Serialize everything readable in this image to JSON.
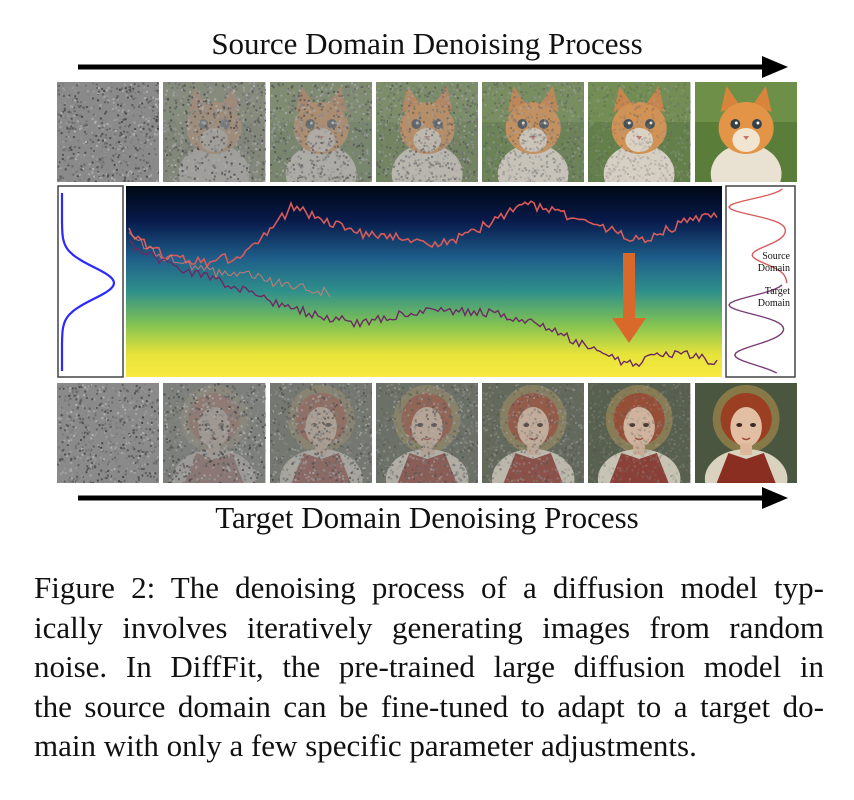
{
  "figure": {
    "title_top": "Source Domain Denoising Process",
    "title_bottom": "Target Domain Denoising Process",
    "legend_source": [
      "Source",
      "Domain"
    ],
    "legend_target": [
      "Target",
      "Domain"
    ],
    "top_row": {
      "subject": "kitten",
      "frames": [
        {
          "noise_level": 1.0
        },
        {
          "noise_level": 0.85
        },
        {
          "noise_level": 0.7
        },
        {
          "noise_level": 0.55
        },
        {
          "noise_level": 0.4
        },
        {
          "noise_level": 0.22
        },
        {
          "noise_level": 0.0
        }
      ]
    },
    "bottom_row": {
      "subject": "painted-portrait",
      "frames": [
        {
          "noise_level": 1.0
        },
        {
          "noise_level": 0.85
        },
        {
          "noise_level": 0.7
        },
        {
          "noise_level": 0.55
        },
        {
          "noise_level": 0.4
        },
        {
          "noise_level": 0.22
        },
        {
          "noise_level": 0.0
        }
      ]
    },
    "colors": {
      "gradient_top": "#000814",
      "gradient_mid": "#2f8f8b",
      "gradient_bottom": "#f6e63a",
      "source_curve": "#d85a5a",
      "target_curve": "#6b2a63",
      "gaussian": "#2a2aff",
      "shift_arrow": "#d8692a"
    }
  },
  "caption": {
    "lines": [
      "Figure 2: The denoising process of a diffusion model typ-",
      "ically involves iteratively generating images from random",
      "noise.  In DiffFit, the pre-trained large diffusion model in",
      "the source domain can be fine-tuned to adapt to a target do-",
      "main with only a few specific parameter adjustments."
    ]
  }
}
